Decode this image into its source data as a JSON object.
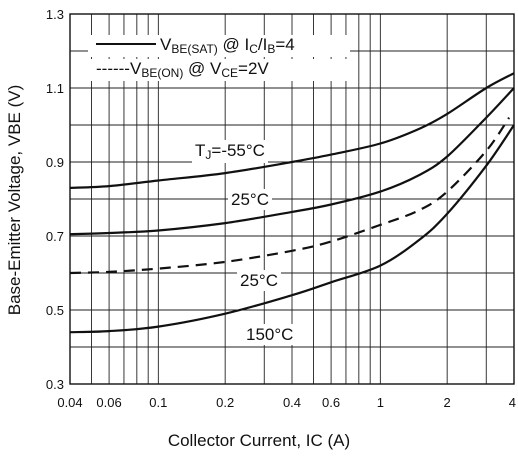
{
  "chart_data": {
    "type": "line",
    "xlabel": "Collector Current, IC (A)",
    "ylabel": "Base-Emitter Voltage, VBE (V)",
    "xscale": "log",
    "xlim": [
      0.04,
      4
    ],
    "ylim": [
      0.3,
      1.3
    ],
    "x_tick_labels": [
      "0.04",
      "0.06",
      "0.1",
      "0.2",
      "0.4",
      "0.6",
      "1",
      "2",
      "4"
    ],
    "x_ticks": [
      0.04,
      0.06,
      0.1,
      0.2,
      0.4,
      0.6,
      1,
      2,
      4
    ],
    "y_tick_labels": [
      "0.3",
      "0.5",
      "0.7",
      "0.9",
      "1.1",
      "1.3"
    ],
    "y_ticks": [
      0.3,
      0.5,
      0.7,
      0.9,
      1.1,
      1.3
    ],
    "grid": true,
    "legend_position": "top-left",
    "legend": [
      {
        "style": "solid",
        "parts": [
          {
            "t": "V"
          },
          {
            "t": "BE(SAT)",
            "sub": true
          },
          {
            "t": " @ I"
          },
          {
            "t": "C",
            "sub": true
          },
          {
            "t": "/I"
          },
          {
            "t": "B",
            "sub": true
          },
          {
            "t": "=4"
          }
        ]
      },
      {
        "style": "dashed",
        "parts": [
          {
            "t": "-V"
          },
          {
            "t": "BE(ON)",
            "sub": true
          },
          {
            "t": " @ V"
          },
          {
            "t": "CE",
            "sub": true
          },
          {
            "t": "=2V"
          }
        ]
      }
    ],
    "annotations": [
      {
        "parts": [
          {
            "t": "T"
          },
          {
            "t": "J",
            "sub": true
          },
          {
            "t": "=-55°C"
          }
        ],
        "x": 0.2,
        "y": 0.9
      },
      {
        "parts": [
          {
            "t": "25°C"
          }
        ],
        "x": 0.25,
        "y": 0.8
      },
      {
        "parts": [
          {
            "t": "25°C"
          }
        ],
        "x": 0.3,
        "y": 0.6
      },
      {
        "parts": [
          {
            "t": "150°C"
          }
        ],
        "x": 0.36,
        "y": 0.4
      }
    ],
    "series": [
      {
        "style": "solid",
        "x": [
          0.04,
          0.06,
          0.1,
          0.2,
          0.4,
          0.6,
          1,
          1.5,
          2,
          3,
          4
        ],
        "y": [
          0.83,
          0.835,
          0.85,
          0.87,
          0.9,
          0.92,
          0.95,
          0.99,
          1.03,
          1.1,
          1.14
        ]
      },
      {
        "style": "solid",
        "x": [
          0.04,
          0.06,
          0.1,
          0.2,
          0.4,
          0.6,
          1,
          1.5,
          2,
          3,
          4
        ],
        "y": [
          0.705,
          0.708,
          0.715,
          0.735,
          0.765,
          0.785,
          0.82,
          0.865,
          0.915,
          1.02,
          1.1
        ]
      },
      {
        "style": "dashed",
        "x": [
          0.04,
          0.06,
          0.1,
          0.2,
          0.4,
          0.6,
          1,
          1.5,
          2,
          3,
          3.8
        ],
        "y": [
          0.6,
          0.603,
          0.612,
          0.63,
          0.66,
          0.685,
          0.73,
          0.77,
          0.82,
          0.93,
          1.02
        ]
      },
      {
        "style": "solid",
        "x": [
          0.04,
          0.06,
          0.1,
          0.2,
          0.4,
          0.6,
          1,
          1.5,
          2,
          3,
          4
        ],
        "y": [
          0.44,
          0.443,
          0.455,
          0.49,
          0.54,
          0.575,
          0.62,
          0.69,
          0.76,
          0.89,
          1.0
        ]
      }
    ]
  }
}
